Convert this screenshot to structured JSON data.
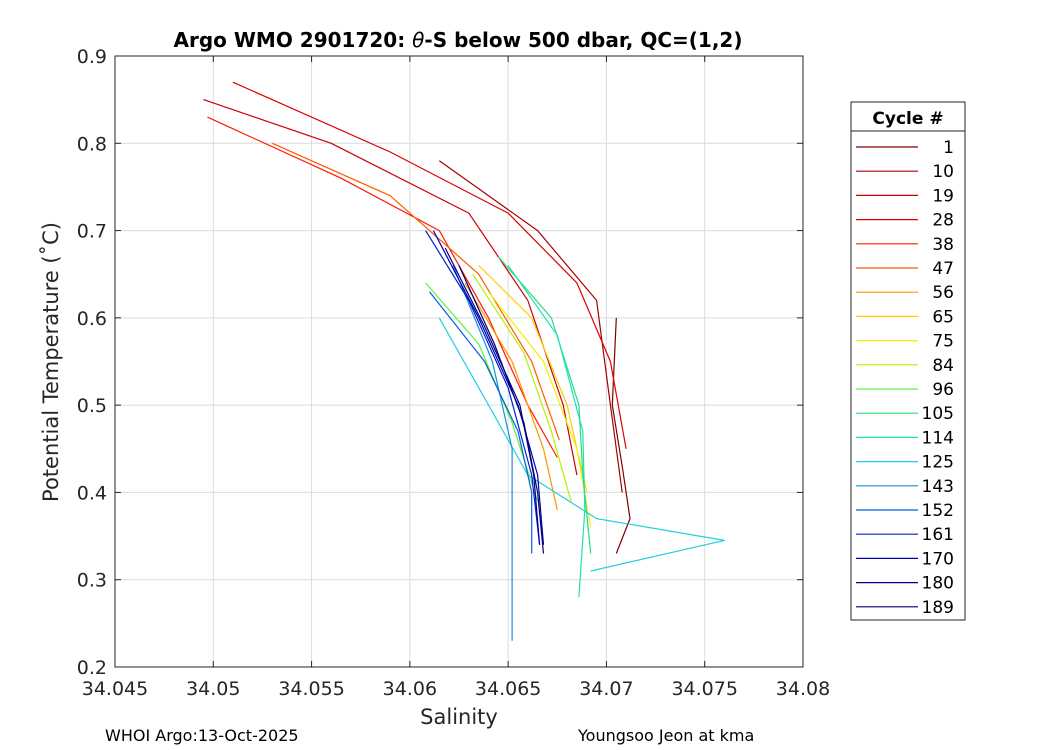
{
  "chart_data": {
    "type": "line",
    "title_prefix": "Argo WMO 2901720: ",
    "title_theta": "θ",
    "title_suffix": "-S below 500 dbar,  QC=(1,2)",
    "xlabel": "Salinity",
    "ylabel": "Potential Temperature (˚C)",
    "xlim": [
      34.045,
      34.08
    ],
    "ylim": [
      0.2,
      0.9
    ],
    "xticks": [
      34.045,
      34.05,
      34.055,
      34.06,
      34.065,
      34.07,
      34.075,
      34.08
    ],
    "xtick_labels": [
      "34.045",
      "34.05",
      "34.055",
      "34.06",
      "34.065",
      "34.07",
      "34.075",
      "34.08"
    ],
    "yticks": [
      0.2,
      0.3,
      0.4,
      0.5,
      0.6,
      0.7,
      0.8,
      0.9
    ],
    "ytick_labels": [
      "0.2",
      "0.3",
      "0.4",
      "0.5",
      "0.6",
      "0.7",
      "0.8",
      "0.9"
    ],
    "grid": true,
    "legend_title": "Cycle #",
    "legend_position": "outside-right",
    "series": [
      {
        "name": "1",
        "color": "#7f0000",
        "points": [
          [
            34.0705,
            0.6
          ],
          [
            34.0703,
            0.5
          ],
          [
            34.0708,
            0.43
          ],
          [
            34.0712,
            0.37
          ],
          [
            34.0705,
            0.33
          ]
        ]
      },
      {
        "name": "10",
        "color": "#a50000",
        "points": [
          [
            34.0615,
            0.78
          ],
          [
            34.0665,
            0.7
          ],
          [
            34.0695,
            0.62
          ],
          [
            34.0702,
            0.5
          ],
          [
            34.0708,
            0.4
          ]
        ]
      },
      {
        "name": "19",
        "color": "#cc0000",
        "points": [
          [
            34.0495,
            0.85
          ],
          [
            34.056,
            0.8
          ],
          [
            34.063,
            0.72
          ],
          [
            34.066,
            0.62
          ],
          [
            34.0678,
            0.5
          ],
          [
            34.0685,
            0.42
          ]
        ]
      },
      {
        "name": "28",
        "color": "#e00000",
        "points": [
          [
            34.051,
            0.87
          ],
          [
            34.059,
            0.79
          ],
          [
            34.065,
            0.72
          ],
          [
            34.0685,
            0.64
          ],
          [
            34.0702,
            0.55
          ],
          [
            34.071,
            0.45
          ]
        ]
      },
      {
        "name": "38",
        "color": "#ff1a00",
        "points": [
          [
            34.0497,
            0.83
          ],
          [
            34.0565,
            0.76
          ],
          [
            34.0615,
            0.7
          ],
          [
            34.064,
            0.6
          ],
          [
            34.066,
            0.5
          ],
          [
            34.0675,
            0.44
          ]
        ]
      },
      {
        "name": "47",
        "color": "#ff5a00",
        "points": [
          [
            34.053,
            0.8
          ],
          [
            34.059,
            0.74
          ],
          [
            34.0635,
            0.65
          ],
          [
            34.0662,
            0.55
          ],
          [
            34.0676,
            0.46
          ]
        ]
      },
      {
        "name": "56",
        "color": "#ff9500",
        "points": [
          [
            34.0628,
            0.64
          ],
          [
            34.0652,
            0.55
          ],
          [
            34.0668,
            0.45
          ],
          [
            34.0675,
            0.38
          ]
        ]
      },
      {
        "name": "65",
        "color": "#ffcc00",
        "points": [
          [
            34.0635,
            0.66
          ],
          [
            34.0662,
            0.6
          ],
          [
            34.068,
            0.5
          ],
          [
            34.069,
            0.4
          ]
        ]
      },
      {
        "name": "75",
        "color": "#f0f000",
        "points": [
          [
            34.064,
            0.63
          ],
          [
            34.0668,
            0.55
          ],
          [
            34.0685,
            0.45
          ],
          [
            34.0692,
            0.36
          ]
        ]
      },
      {
        "name": "84",
        "color": "#b8f000",
        "points": [
          [
            34.0632,
            0.65
          ],
          [
            34.0658,
            0.56
          ],
          [
            34.0672,
            0.47
          ],
          [
            34.0682,
            0.39
          ]
        ]
      },
      {
        "name": "96",
        "color": "#60f040",
        "points": [
          [
            34.0608,
            0.64
          ],
          [
            34.0635,
            0.57
          ],
          [
            34.0652,
            0.48
          ],
          [
            34.0665,
            0.39
          ]
        ]
      },
      {
        "name": "105",
        "color": "#20e080",
        "points": [
          [
            34.0645,
            0.67
          ],
          [
            34.0672,
            0.6
          ],
          [
            34.0686,
            0.5
          ],
          [
            34.0688,
            0.42
          ],
          [
            34.0692,
            0.33
          ]
        ]
      },
      {
        "name": "114",
        "color": "#20e0b0",
        "points": [
          [
            34.065,
            0.66
          ],
          [
            34.0675,
            0.58
          ],
          [
            34.0688,
            0.47
          ],
          [
            34.0689,
            0.38
          ],
          [
            34.0686,
            0.28
          ]
        ]
      },
      {
        "name": "125",
        "color": "#20d0e0",
        "points": [
          [
            34.0615,
            0.6
          ],
          [
            34.064,
            0.5
          ],
          [
            34.066,
            0.42
          ],
          [
            34.0695,
            0.37
          ],
          [
            34.076,
            0.345
          ],
          [
            34.0692,
            0.31
          ]
        ]
      },
      {
        "name": "143",
        "color": "#1090e0",
        "points": [
          [
            34.0622,
            0.66
          ],
          [
            34.0642,
            0.55
          ],
          [
            34.0652,
            0.45
          ],
          [
            34.0652,
            0.3
          ],
          [
            34.0652,
            0.23
          ]
        ]
      },
      {
        "name": "152",
        "color": "#0060e0",
        "points": [
          [
            34.061,
            0.63
          ],
          [
            34.0638,
            0.55
          ],
          [
            34.0655,
            0.47
          ],
          [
            34.0662,
            0.4
          ],
          [
            34.0662,
            0.33
          ]
        ]
      },
      {
        "name": "161",
        "color": "#0020d0",
        "points": [
          [
            34.0608,
            0.7
          ],
          [
            34.063,
            0.62
          ],
          [
            34.065,
            0.52
          ],
          [
            34.0662,
            0.42
          ],
          [
            34.0666,
            0.34
          ]
        ]
      },
      {
        "name": "170",
        "color": "#0000b0",
        "points": [
          [
            34.0612,
            0.7
          ],
          [
            34.0635,
            0.6
          ],
          [
            34.0655,
            0.5
          ],
          [
            34.0665,
            0.42
          ],
          [
            34.0668,
            0.34
          ]
        ]
      },
      {
        "name": "180",
        "color": "#00008f",
        "points": [
          [
            34.0618,
            0.68
          ],
          [
            34.0638,
            0.59
          ],
          [
            34.0656,
            0.5
          ],
          [
            34.0663,
            0.42
          ],
          [
            34.0666,
            0.34
          ]
        ]
      },
      {
        "name": "189",
        "color": "#000070",
        "points": [
          [
            34.0625,
            0.66
          ],
          [
            34.0643,
            0.57
          ],
          [
            34.0658,
            0.48
          ],
          [
            34.0665,
            0.4
          ],
          [
            34.0668,
            0.33
          ]
        ]
      }
    ]
  },
  "footer": {
    "left": "WHOI Argo:13-Oct-2025",
    "right": "Youngsoo Jeon at kma"
  }
}
